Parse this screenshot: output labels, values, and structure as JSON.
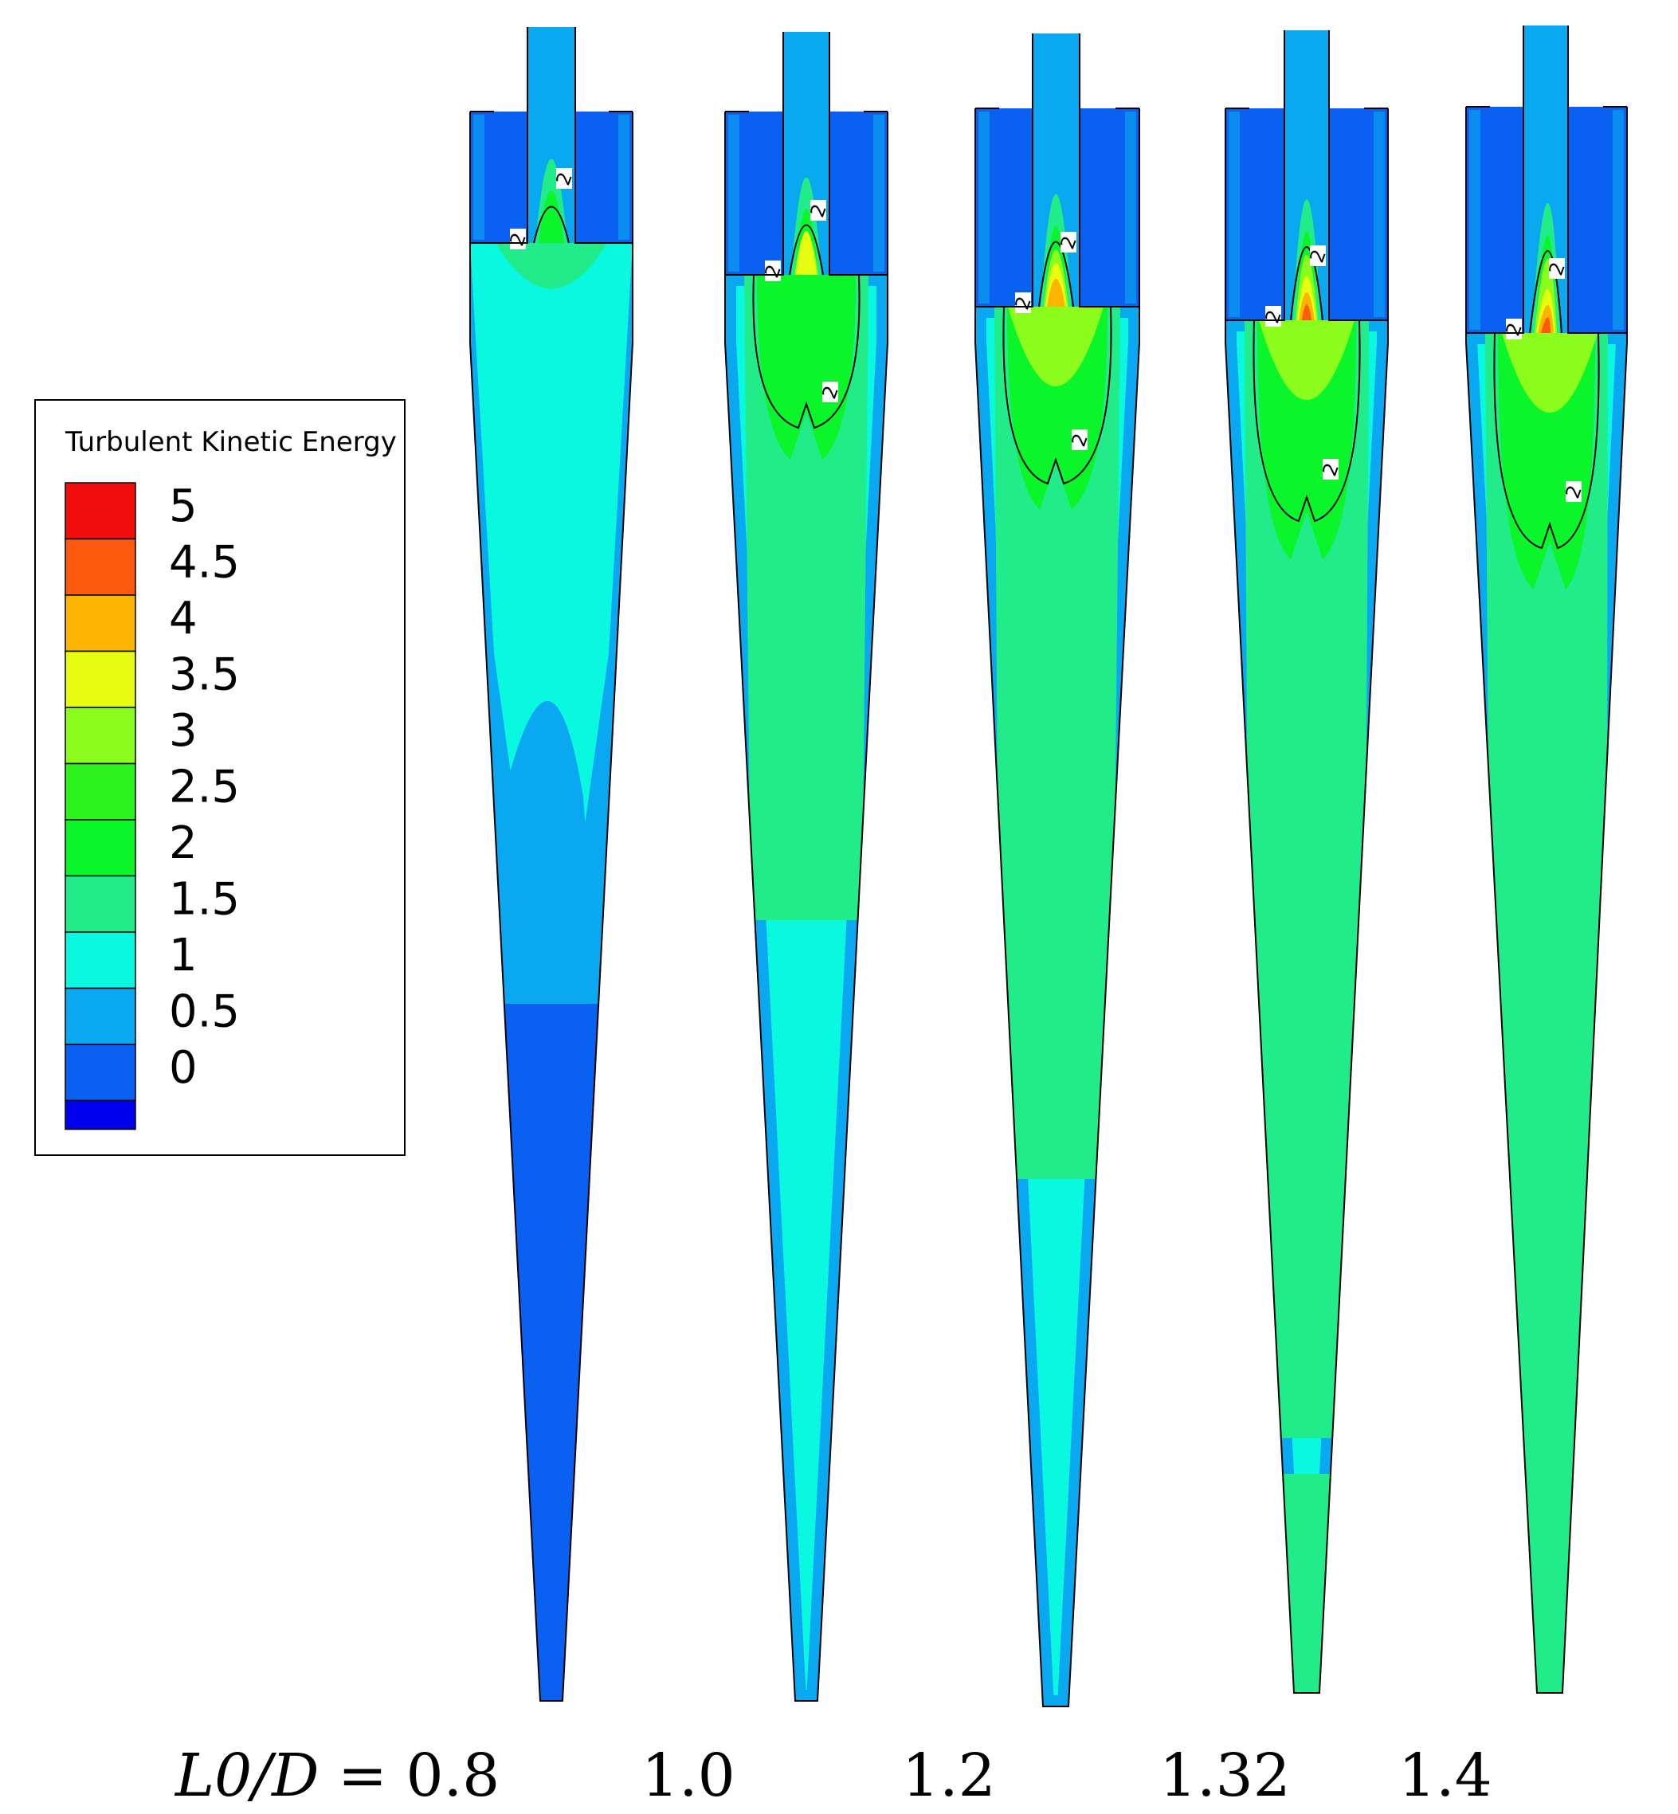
{
  "legend": {
    "title": "Turbulent Kinetic Energy",
    "levels": [
      {
        "label": "5",
        "color": "#f20d0d"
      },
      {
        "label": "4.5",
        "color": "#fc5a0c"
      },
      {
        "label": "4",
        "color": "#fdb400"
      },
      {
        "label": "3.5",
        "color": "#e6fc10"
      },
      {
        "label": "3",
        "color": "#8cfc1c"
      },
      {
        "label": "2.5",
        "color": "#2cf21e"
      },
      {
        "label": "2",
        "color": "#0af52a"
      },
      {
        "label": "1.5",
        "color": "#22ec8a"
      },
      {
        "label": "1",
        "color": "#0af7e0"
      },
      {
        "label": "0.5",
        "color": "#0aa8f0"
      },
      {
        "label": "0",
        "color": "#0a60f0"
      },
      {
        "label": "",
        "color": "#0000ee"
      }
    ]
  },
  "contour_label": "2",
  "cases": [
    {
      "label": "L0/D = 0.8",
      "italic_part": "L0/D",
      "value": "0.8",
      "mix": 0.0
    },
    {
      "label": "1.0",
      "value": "1.0",
      "mix": 0.35
    },
    {
      "label": "1.2",
      "value": "1.2",
      "mix": 0.6
    },
    {
      "label": "1.32",
      "value": "1.32",
      "mix": 0.85
    },
    {
      "label": "1.4",
      "value": "1.4",
      "mix": 1.0
    }
  ]
}
